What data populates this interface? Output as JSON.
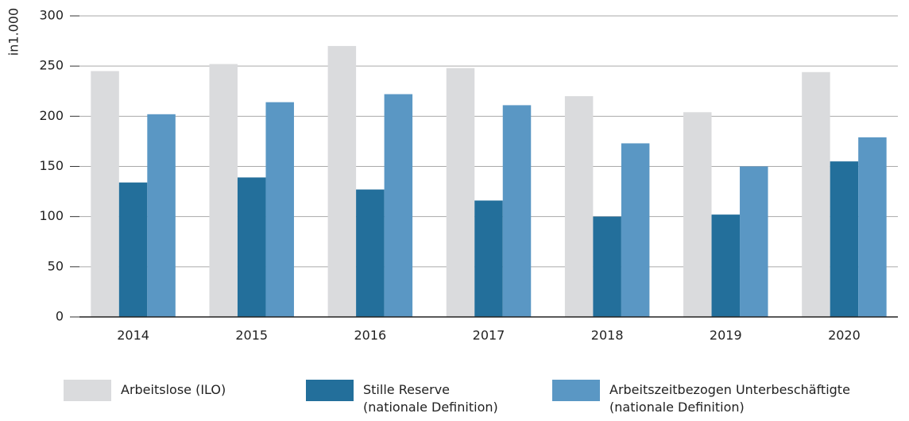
{
  "chart_data": {
    "type": "bar",
    "ylabel": "in1.000",
    "categories": [
      "2014",
      "2015",
      "2016",
      "2017",
      "2018",
      "2019",
      "2020"
    ],
    "series": [
      {
        "name": "Arbeitslose (ILO)",
        "color": "#dadbdd",
        "values": [
          245,
          252,
          270,
          248,
          220,
          204,
          244
        ]
      },
      {
        "name": "Stille Reserve\n(nationale Definition)",
        "color": "#236f9b",
        "values": [
          134,
          139,
          127,
          116,
          100,
          102,
          155
        ]
      },
      {
        "name": "Arbeitszeitbezogen Unterbeschäftigte\n(nationale Definition)",
        "color": "#5a97c4",
        "values": [
          202,
          214,
          222,
          211,
          173,
          150,
          179
        ]
      }
    ],
    "ylim": [
      0,
      300
    ],
    "yticks": [
      0,
      50,
      100,
      150,
      200,
      250,
      300
    ],
    "grid": true
  }
}
